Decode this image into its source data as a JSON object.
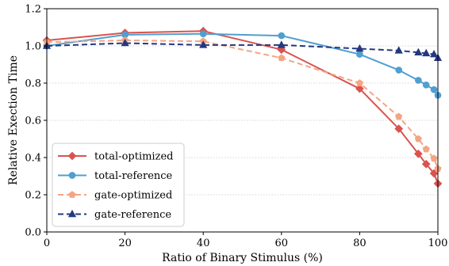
{
  "chart_data": {
    "type": "line",
    "title": "",
    "xlabel": "Ratio of Binary Stimulus (%)",
    "ylabel": "Relative Exection Time",
    "xlim": [
      0,
      100
    ],
    "ylim": [
      0.0,
      1.2
    ],
    "xticks": [
      0,
      20,
      40,
      60,
      80,
      100
    ],
    "xtick_labels": [
      "0",
      "20",
      "40",
      "60",
      "80",
      "100"
    ],
    "yticks": [
      0.0,
      0.2,
      0.4,
      0.6,
      0.8,
      1.0,
      1.2
    ],
    "ytick_labels": [
      "0.0",
      "0.2",
      "0.4",
      "0.6",
      "0.8",
      "1.0",
      "1.2"
    ],
    "grid": "horizontal dotted",
    "legend_position": "lower-left",
    "series": [
      {
        "name": "total-optimized",
        "color": "#d9534f",
        "line_style": "solid",
        "marker": "diamond",
        "x": [
          0,
          20,
          40,
          60,
          80,
          90,
          95,
          97,
          99,
          100
        ],
        "y": [
          1.03,
          1.07,
          1.08,
          0.98,
          0.77,
          0.555,
          0.42,
          0.365,
          0.315,
          0.26
        ]
      },
      {
        "name": "total-reference",
        "color": "#4f9fd0",
        "line_style": "solid",
        "marker": "circle",
        "x": [
          0,
          20,
          40,
          60,
          80,
          90,
          95,
          97,
          99,
          100
        ],
        "y": [
          1.0,
          1.06,
          1.065,
          1.055,
          0.955,
          0.87,
          0.815,
          0.79,
          0.765,
          0.735
        ]
      },
      {
        "name": "gate-optimized",
        "color": "#f4a582",
        "line_style": "dashed",
        "marker": "pentagon",
        "x": [
          0,
          20,
          40,
          60,
          80,
          90,
          95,
          97,
          99,
          100
        ],
        "y": [
          1.02,
          1.03,
          1.025,
          0.935,
          0.8,
          0.62,
          0.5,
          0.445,
          0.395,
          0.34
        ]
      },
      {
        "name": "gate-reference",
        "color": "#25387f",
        "line_style": "dashed",
        "marker": "triangle",
        "x": [
          0,
          20,
          40,
          60,
          80,
          90,
          95,
          97,
          99,
          100
        ],
        "y": [
          1.0,
          1.015,
          1.005,
          1.005,
          0.985,
          0.975,
          0.965,
          0.96,
          0.955,
          0.935
        ]
      }
    ]
  }
}
